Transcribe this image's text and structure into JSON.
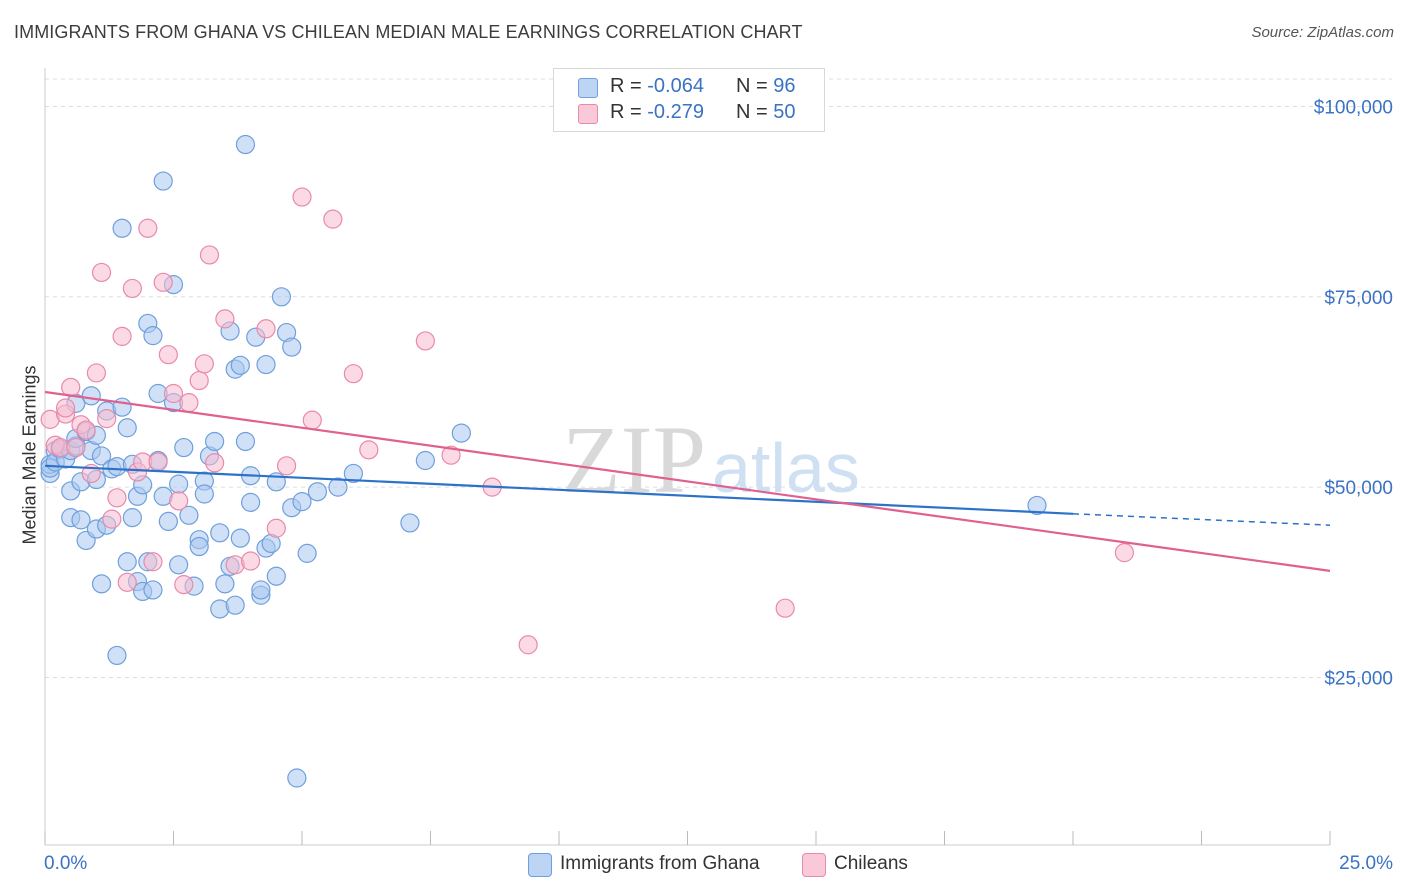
{
  "header": {
    "title": "IMMIGRANTS FROM GHANA VS CHILEAN MEDIAN MALE EARNINGS CORRELATION CHART",
    "source": "Source: ZipAtlas.com"
  },
  "legend": {
    "rows": [
      {
        "r_label": "R =",
        "r_value": "-0.064",
        "n_label": "N =",
        "n_value": "96"
      },
      {
        "r_label": "R =",
        "r_value": "-0.279",
        "n_label": "N =",
        "n_value": "50"
      }
    ]
  },
  "bottom_legend": {
    "items": [
      {
        "label": "Immigrants from Ghana"
      },
      {
        "label": "Chileans"
      }
    ]
  },
  "watermark": {
    "zip": "ZIP",
    "atlas": "atlas"
  },
  "chart_data": {
    "type": "scatter",
    "title": "IMMIGRANTS FROM GHANA VS CHILEAN MEDIAN MALE EARNINGS CORRELATION CHART",
    "xlabel": "",
    "ylabel": "Median Male Earnings",
    "xlim": [
      0,
      25
    ],
    "ylim": [
      3000,
      104000
    ],
    "x_tick_labels": [
      "0.0%",
      "25.0%"
    ],
    "y_ticks": [
      {
        "value": 25000,
        "label": "$25,000"
      },
      {
        "value": 50000,
        "label": "$50,000"
      },
      {
        "value": 75000,
        "label": "$75,000"
      },
      {
        "value": 100000,
        "label": "$100,000"
      }
    ],
    "grid": "horizontal dashed",
    "legend_position": "top-center",
    "colors": {
      "ghana_fill": "#a9c8f0",
      "ghana_stroke": "#6f9fdc",
      "ghana_line": "#2d72c9",
      "chile_fill": "#f7bcd0",
      "chile_stroke": "#e88aaa",
      "chile_line": "#e0608e",
      "tick_label": "#3a72c4",
      "grid": "#dddddd",
      "axis": "#cccccc"
    },
    "series": [
      {
        "name": "Immigrants from Ghana",
        "x": [
          0.1,
          0.1,
          0.1,
          0.2,
          0.2,
          0.3,
          0.4,
          0.5,
          0.5,
          0.5,
          0.6,
          0.6,
          0.6,
          0.7,
          0.7,
          0.8,
          0.8,
          0.9,
          0.9,
          1.0,
          1.0,
          1.0,
          1.1,
          1.1,
          1.2,
          1.2,
          1.3,
          1.4,
          1.4,
          1.5,
          1.5,
          1.6,
          1.6,
          1.7,
          1.7,
          1.8,
          1.8,
          1.9,
          1.9,
          2.0,
          2.0,
          2.1,
          2.1,
          2.2,
          2.2,
          2.3,
          2.3,
          2.4,
          2.5,
          2.5,
          2.6,
          2.6,
          2.7,
          2.8,
          2.9,
          3.0,
          3.0,
          3.1,
          3.1,
          3.2,
          3.3,
          3.4,
          3.4,
          3.5,
          3.6,
          3.6,
          3.7,
          3.7,
          3.8,
          3.8,
          3.9,
          3.9,
          4.0,
          4.0,
          4.1,
          4.2,
          4.2,
          4.3,
          4.3,
          4.4,
          4.5,
          4.5,
          4.6,
          4.7,
          4.8,
          4.8,
          4.9,
          5.0,
          5.1,
          5.3,
          5.7,
          6.0,
          7.1,
          7.4,
          8.1,
          19.3
        ],
        "y": [
          51800,
          53000,
          52500,
          54800,
          53300,
          55000,
          53700,
          49500,
          46000,
          54800,
          55400,
          56400,
          61000,
          45700,
          50700,
          43000,
          57300,
          62000,
          54800,
          51000,
          44500,
          56800,
          37300,
          54100,
          60000,
          45000,
          52400,
          27900,
          52700,
          60500,
          84000,
          57800,
          40200,
          53000,
          46000,
          48800,
          37600,
          36300,
          50300,
          40200,
          71500,
          36500,
          69900,
          62300,
          53500,
          90200,
          48800,
          45500,
          76600,
          61100,
          39800,
          50400,
          55200,
          46300,
          37000,
          43100,
          42200,
          50800,
          49100,
          54100,
          56000,
          44000,
          34000,
          37300,
          39600,
          70500,
          34500,
          65500,
          66000,
          43300,
          56000,
          95000,
          48000,
          51500,
          69700,
          35800,
          36500,
          66100,
          42000,
          42600,
          50700,
          38300,
          75000,
          70300,
          68400,
          47300,
          11800,
          48100,
          41300,
          49400,
          50000,
          51800,
          45300,
          53500,
          57100,
          47600
        ],
        "trend": {
          "x": [
            0,
            20,
            25
          ],
          "y": [
            52800,
            46500,
            45000
          ],
          "solid_until_x": 20
        }
      },
      {
        "name": "Chileans",
        "x": [
          0.1,
          0.2,
          0.3,
          0.4,
          0.4,
          0.5,
          0.6,
          0.7,
          0.8,
          0.9,
          1.0,
          1.1,
          1.2,
          1.3,
          1.4,
          1.5,
          1.6,
          1.7,
          1.8,
          1.9,
          2.0,
          2.1,
          2.2,
          2.3,
          2.4,
          2.5,
          2.6,
          2.7,
          2.8,
          3.0,
          3.1,
          3.2,
          3.3,
          3.5,
          3.7,
          4.0,
          4.3,
          4.5,
          4.7,
          5.0,
          5.2,
          5.6,
          6.0,
          6.3,
          7.4,
          7.9,
          8.7,
          9.4,
          14.4,
          21.0
        ],
        "y": [
          58900,
          55500,
          55200,
          59600,
          60400,
          63100,
          55200,
          58200,
          57500,
          51800,
          65000,
          78200,
          59000,
          45800,
          48600,
          69800,
          37500,
          76100,
          52000,
          53300,
          84000,
          40200,
          53300,
          76900,
          67400,
          62300,
          48200,
          37200,
          61100,
          64000,
          66200,
          80500,
          53200,
          72100,
          39800,
          40300,
          70800,
          44600,
          52800,
          88100,
          58800,
          85200,
          64900,
          54900,
          69200,
          54200,
          50000,
          29300,
          34100,
          41400
        ],
        "trend": {
          "x": [
            0,
            25
          ],
          "y": [
            62500,
            39000
          ]
        }
      }
    ]
  }
}
